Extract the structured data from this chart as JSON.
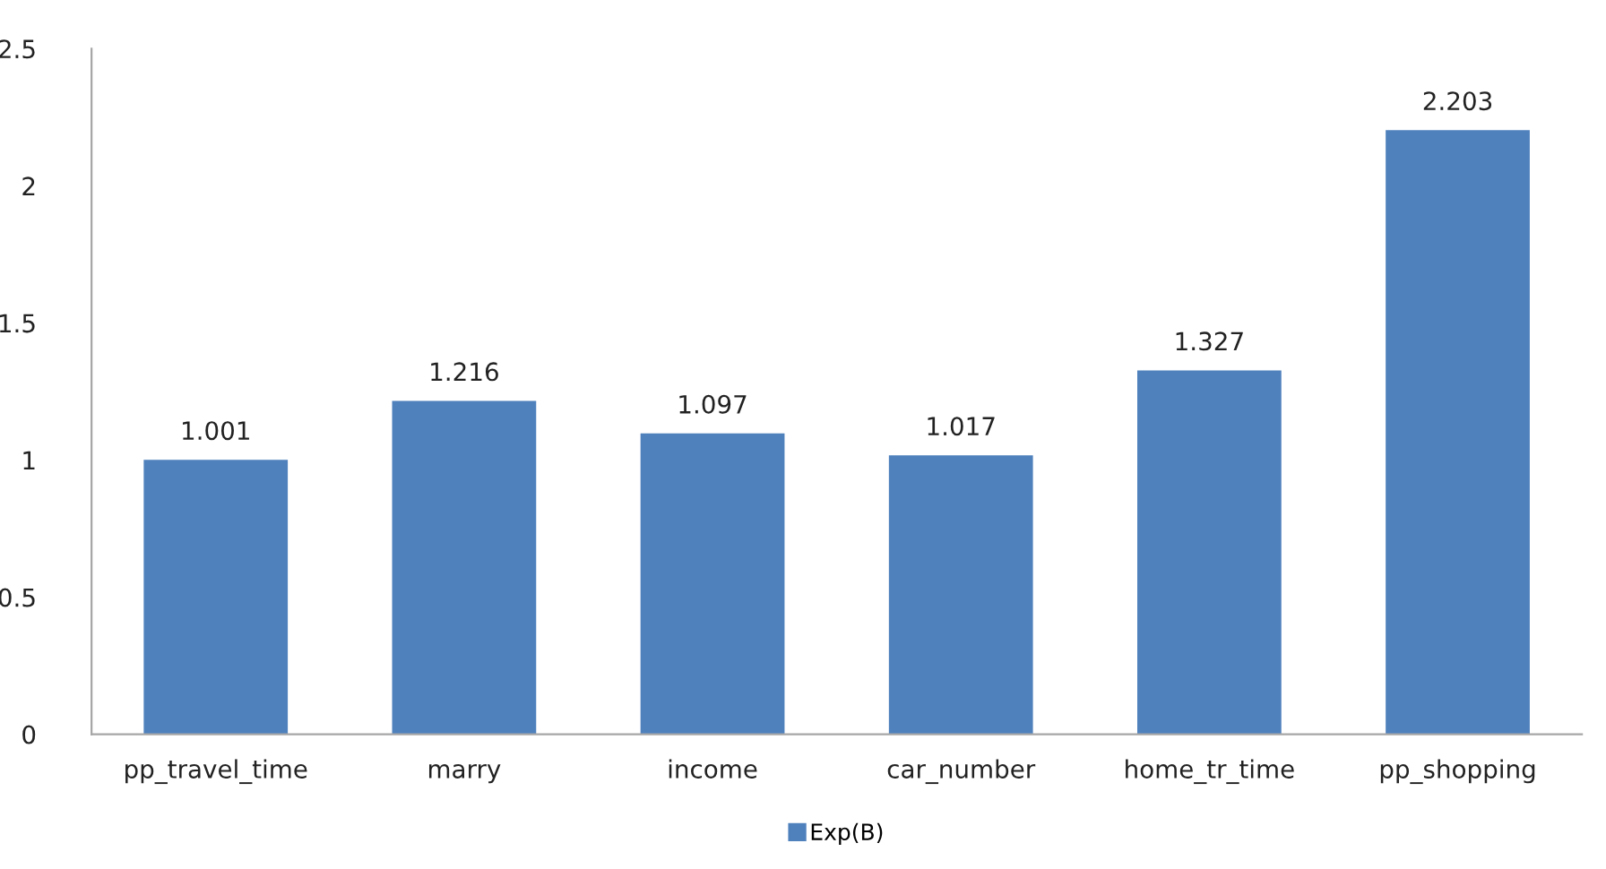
{
  "chart_data": {
    "type": "bar",
    "categories": [
      "pp_travel_time",
      "marry",
      "income",
      "car_number",
      "home_tr_time",
      "pp_shopping"
    ],
    "series": [
      {
        "name": "Exp(B)",
        "color": "#4f81bd",
        "values": [
          1.001,
          1.216,
          1.097,
          1.017,
          1.327,
          2.203
        ]
      }
    ],
    "ylim": [
      0,
      2.5
    ],
    "yticks": [
      0,
      0.5,
      1,
      1.5,
      2,
      2.5
    ],
    "data_labels": true,
    "grid": false,
    "legend": "bottom"
  }
}
